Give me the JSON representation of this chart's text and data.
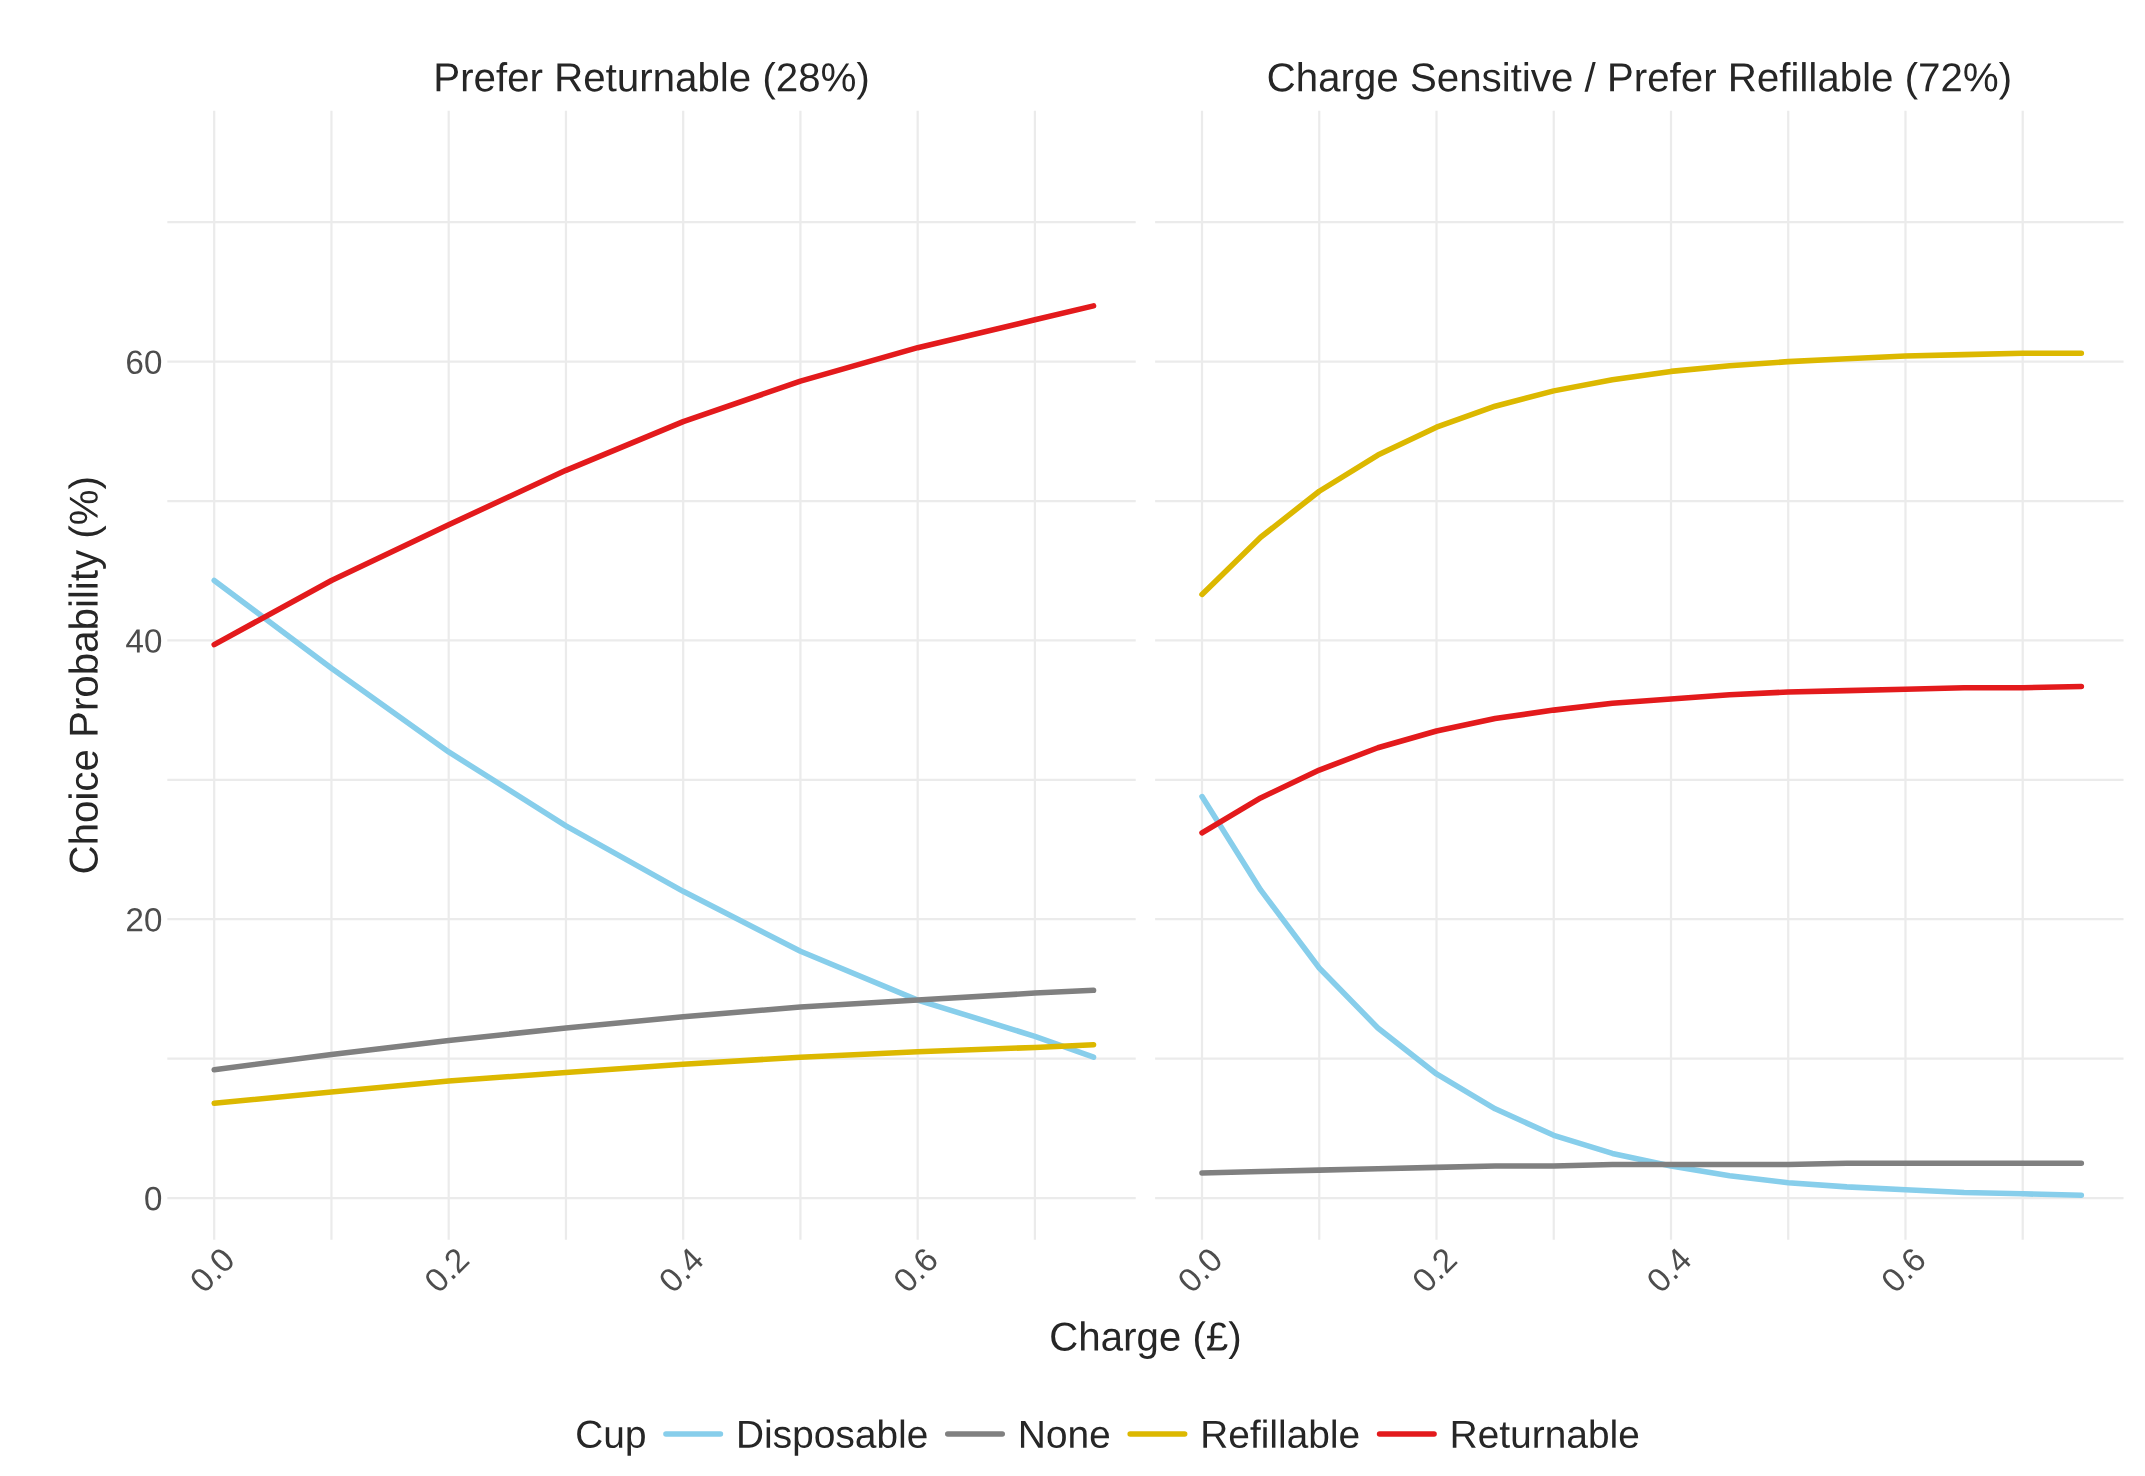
{
  "chart_data": [
    {
      "type": "line",
      "title": "Prefer Returnable (28%)",
      "xlabel": "Charge (£)",
      "ylabel": "Choice Probability (%)",
      "legend_title": "Cup",
      "legend": "bottom",
      "grid": true,
      "xlim": [
        -0.04,
        0.786
      ],
      "ylim": [
        -3,
        78
      ],
      "xticks": [
        {
          "value": 0,
          "label": "0.0"
        },
        {
          "value": 0.1,
          "label": null
        },
        {
          "value": 0.2,
          "label": "0.2"
        },
        {
          "value": 0.3,
          "label": null
        },
        {
          "value": 0.4,
          "label": "0.4"
        },
        {
          "value": 0.5,
          "label": null
        },
        {
          "value": 0.6,
          "label": "0.6"
        },
        {
          "value": 0.7,
          "label": null
        }
      ],
      "yticks": [
        0,
        {
          "value": 10,
          "label": null
        },
        20,
        {
          "value": 30,
          "label": null
        },
        40,
        {
          "value": 50,
          "label": null
        },
        60,
        {
          "value": 70,
          "label": null
        }
      ],
      "x": [
        0,
        0.1,
        0.2,
        0.3,
        0.4,
        0.5,
        0.6,
        0.7,
        0.75
      ],
      "series": [
        {
          "name": "Disposable",
          "color": "#87ceeb",
          "values": [
            44.3,
            38,
            32,
            26.7,
            22,
            17.7,
            14.2,
            11.6,
            10.1
          ]
        },
        {
          "name": "None",
          "color": "#808080",
          "values": [
            9.2,
            10.3,
            11.3,
            12.2,
            13,
            13.7,
            14.2,
            14.7,
            14.9
          ]
        },
        {
          "name": "Refillable",
          "color": "#dcb800",
          "values": [
            6.8,
            7.6,
            8.4,
            9.0,
            9.6,
            10.1,
            10.5,
            10.8,
            11.0
          ]
        },
        {
          "name": "Returnable",
          "color": "#e31a1c",
          "values": [
            39.7,
            44.3,
            48.3,
            52.2,
            55.7,
            58.6,
            61,
            63,
            64
          ]
        }
      ]
    },
    {
      "type": "line",
      "title": "Charge Sensitive / Prefer Refillable (72%)",
      "grid": true,
      "tick_labels": "x",
      "xlim": [
        -0.04,
        0.786
      ],
      "ylim": [
        -3,
        78
      ],
      "xticks": [
        {
          "value": 0,
          "label": "0.0"
        },
        {
          "value": 0.1,
          "label": null
        },
        {
          "value": 0.2,
          "label": "0.2"
        },
        {
          "value": 0.3,
          "label": null
        },
        {
          "value": 0.4,
          "label": "0.4"
        },
        {
          "value": 0.5,
          "label": null
        },
        {
          "value": 0.6,
          "label": "0.6"
        },
        {
          "value": 0.7,
          "label": null
        }
      ],
      "yticks": [
        0,
        {
          "value": 10,
          "label": null
        },
        20,
        {
          "value": 30,
          "label": null
        },
        40,
        {
          "value": 50,
          "label": null
        },
        60,
        {
          "value": 70,
          "label": null
        }
      ],
      "x": [
        0,
        0.05,
        0.1,
        0.15,
        0.2,
        0.25,
        0.3,
        0.35,
        0.4,
        0.45,
        0.5,
        0.55,
        0.6,
        0.65,
        0.7,
        0.75
      ],
      "series": [
        {
          "name": "Disposable",
          "color": "#87ceeb",
          "values": [
            28.8,
            22.1,
            16.5,
            12.2,
            8.9,
            6.4,
            4.5,
            3.2,
            2.3,
            1.6,
            1.1,
            0.8,
            0.6,
            0.4,
            0.3,
            0.2
          ]
        },
        {
          "name": "None",
          "color": "#808080",
          "values": [
            1.8,
            1.9,
            2.0,
            2.1,
            2.2,
            2.3,
            2.3,
            2.4,
            2.4,
            2.4,
            2.4,
            2.5,
            2.5,
            2.5,
            2.5,
            2.5
          ]
        },
        {
          "name": "Refillable",
          "color": "#dcb800",
          "values": [
            43.3,
            47.4,
            50.7,
            53.3,
            55.3,
            56.8,
            57.9,
            58.7,
            59.3,
            59.7,
            60.0,
            60.2,
            60.4,
            60.5,
            60.6,
            60.6
          ]
        },
        {
          "name": "Returnable",
          "color": "#e31a1c",
          "values": [
            26.2,
            28.7,
            30.7,
            32.3,
            33.5,
            34.4,
            35.0,
            35.5,
            35.8,
            36.1,
            36.3,
            36.4,
            36.5,
            36.6,
            36.6,
            36.7
          ]
        }
      ]
    }
  ]
}
